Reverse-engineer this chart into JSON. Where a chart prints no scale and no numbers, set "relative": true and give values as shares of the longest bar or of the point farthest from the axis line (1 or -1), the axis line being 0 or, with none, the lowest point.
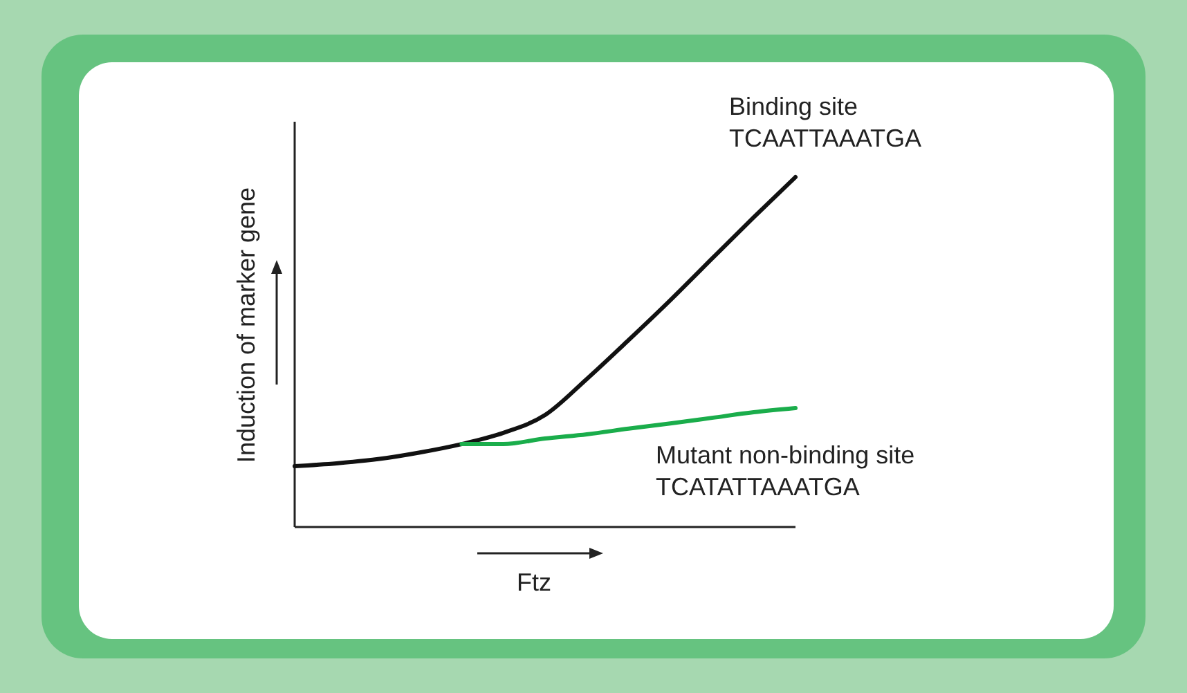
{
  "chart_data": {
    "type": "line",
    "relative": true,
    "xlabel": "Ftz",
    "ylabel": "Induction of marker gene",
    "legend": false,
    "grid": false,
    "categories": [
      null,
      null,
      null,
      null,
      null,
      null,
      null,
      null,
      null,
      null,
      null,
      null,
      null
    ],
    "series": [
      {
        "name": "Binding site\nTCAATTAAATGA",
        "color": "#111111",
        "values": [
          0.174,
          0.182,
          0.194,
          0.213,
          0.237,
          0.269,
          0.32,
          0.423,
          0.534,
          0.648,
          0.767,
          0.885,
          1
        ]
      },
      {
        "name": "Mutant non-binding site\nTCATATTAAATGA",
        "color": "#1aad4b",
        "values": [
          null,
          null,
          null,
          null,
          0.237,
          0.237,
          0.253,
          0.265,
          0.281,
          0.296,
          0.312,
          0.328,
          0.34
        ]
      }
    ]
  }
}
